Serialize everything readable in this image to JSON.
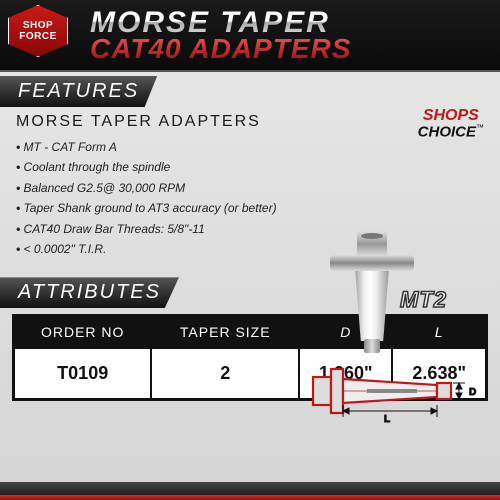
{
  "logo": {
    "line1": "SHOP",
    "line2": "FORCE"
  },
  "title": {
    "line1": "MORSE TAPER",
    "line2": "CAT40 ADAPTERS"
  },
  "badge": {
    "line1": "SHOPS",
    "line2": "CHOICE",
    "tm": "™"
  },
  "features": {
    "label": "FEATURES",
    "subtitle": "MORSE TAPER ADAPTERS",
    "bullets": [
      "MT - CAT Form A",
      "Coolant through the spindle",
      "Balanced G2.5@ 30,000 RPM",
      "Taper Shank ground to AT3 accuracy (or better)",
      "CAT40 Draw Bar Threads: 5/8\"-11",
      "< 0.0002\" T.I.R."
    ]
  },
  "product": {
    "label": "MT2",
    "dim_L": "L",
    "dim_D": "D"
  },
  "attributes": {
    "label": "ATTRIBUTES",
    "columns": [
      "ORDER NO",
      "TAPER SIZE",
      "D",
      "L"
    ],
    "rows": [
      [
        "T0109",
        "2",
        "1.260\"",
        "2.638\""
      ]
    ]
  },
  "style": {
    "accent_red": "#c01818",
    "dark": "#111111",
    "schematic_stroke": "#c01818",
    "schematic_fill": "#e0e0e0"
  }
}
